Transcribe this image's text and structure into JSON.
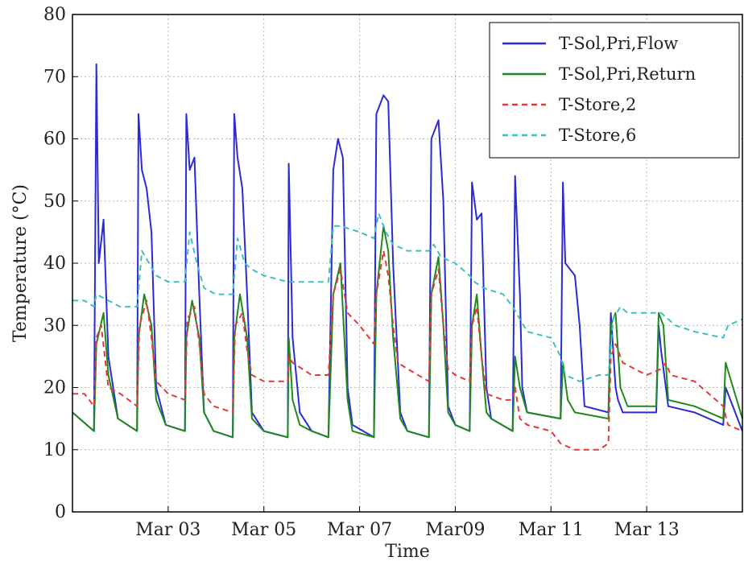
{
  "chart_data": {
    "type": "line",
    "title": "",
    "xlabel": "Time",
    "ylabel": "Temperature (°C)",
    "ylim": [
      0,
      80
    ],
    "yticks": [
      0,
      10,
      20,
      30,
      40,
      50,
      60,
      70,
      80
    ],
    "xlim_days": [
      0,
      14
    ],
    "xticks": [
      {
        "label": "Mar 03",
        "day": 2
      },
      {
        "label": "Mar 05",
        "day": 4
      },
      {
        "label": "Mar 07",
        "day": 6
      },
      {
        "label": "Mar09",
        "day": 8
      },
      {
        "label": "Mar 11",
        "day": 10
      },
      {
        "label": "Mar 13",
        "day": 12
      }
    ],
    "grid": true,
    "legend_position": "top-right",
    "series": [
      {
        "name": "T-Sol,Pri,Flow",
        "color": "#2b2bd6",
        "dash": "solid",
        "points": [
          [
            0,
            16
          ],
          [
            0.45,
            13
          ],
          [
            0.5,
            72
          ],
          [
            0.55,
            40
          ],
          [
            0.65,
            47
          ],
          [
            0.75,
            25
          ],
          [
            0.95,
            15
          ],
          [
            1.35,
            13
          ],
          [
            1.38,
            64
          ],
          [
            1.45,
            55
          ],
          [
            1.55,
            52
          ],
          [
            1.65,
            45
          ],
          [
            1.75,
            20
          ],
          [
            1.95,
            14
          ],
          [
            2.35,
            13
          ],
          [
            2.38,
            64
          ],
          [
            2.45,
            55
          ],
          [
            2.55,
            57
          ],
          [
            2.65,
            35
          ],
          [
            2.75,
            16
          ],
          [
            2.95,
            13
          ],
          [
            3.35,
            12
          ],
          [
            3.38,
            64
          ],
          [
            3.45,
            57
          ],
          [
            3.55,
            52
          ],
          [
            3.65,
            35
          ],
          [
            3.75,
            16
          ],
          [
            4,
            13
          ],
          [
            4.5,
            12
          ],
          [
            4.52,
            56
          ],
          [
            4.6,
            28
          ],
          [
            4.75,
            16
          ],
          [
            5,
            13
          ],
          [
            5.35,
            12
          ],
          [
            5.45,
            55
          ],
          [
            5.55,
            60
          ],
          [
            5.65,
            57
          ],
          [
            5.75,
            20
          ],
          [
            5.85,
            14
          ],
          [
            6.3,
            12
          ],
          [
            6.35,
            64
          ],
          [
            6.5,
            67
          ],
          [
            6.6,
            66
          ],
          [
            6.7,
            40
          ],
          [
            6.85,
            16
          ],
          [
            7,
            13
          ],
          [
            7.45,
            12
          ],
          [
            7.5,
            60
          ],
          [
            7.65,
            63
          ],
          [
            7.75,
            50
          ],
          [
            7.85,
            17
          ],
          [
            8,
            14
          ],
          [
            8.3,
            13
          ],
          [
            8.35,
            53
          ],
          [
            8.45,
            47
          ],
          [
            8.55,
            48
          ],
          [
            8.65,
            20
          ],
          [
            8.75,
            15
          ],
          [
            9.2,
            13
          ],
          [
            9.25,
            54
          ],
          [
            9.35,
            35
          ],
          [
            9.4,
            20
          ],
          [
            9.5,
            16
          ],
          [
            10.2,
            15
          ],
          [
            10.25,
            53
          ],
          [
            10.3,
            40
          ],
          [
            10.5,
            38
          ],
          [
            10.6,
            30
          ],
          [
            10.7,
            17
          ],
          [
            11.2,
            16
          ],
          [
            11.25,
            32
          ],
          [
            11.35,
            20
          ],
          [
            11.4,
            18
          ],
          [
            11.5,
            16
          ],
          [
            12.2,
            16
          ],
          [
            12.25,
            30
          ],
          [
            12.3,
            26
          ],
          [
            12.45,
            17
          ],
          [
            13,
            16
          ],
          [
            13.6,
            14
          ],
          [
            13.65,
            20
          ],
          [
            14,
            13
          ]
        ]
      },
      {
        "name": "T-Sol,Pri,Return",
        "color": "#1e8a1e",
        "dash": "solid",
        "points": [
          [
            0,
            16
          ],
          [
            0.45,
            13
          ],
          [
            0.5,
            27
          ],
          [
            0.65,
            32
          ],
          [
            0.75,
            22
          ],
          [
            0.95,
            15
          ],
          [
            1.35,
            13
          ],
          [
            1.38,
            28
          ],
          [
            1.5,
            35
          ],
          [
            1.65,
            30
          ],
          [
            1.75,
            18
          ],
          [
            1.95,
            14
          ],
          [
            2.35,
            13
          ],
          [
            2.38,
            28
          ],
          [
            2.5,
            34
          ],
          [
            2.65,
            28
          ],
          [
            2.75,
            16
          ],
          [
            2.95,
            13
          ],
          [
            3.35,
            12
          ],
          [
            3.38,
            28
          ],
          [
            3.5,
            35
          ],
          [
            3.65,
            28
          ],
          [
            3.75,
            15
          ],
          [
            4,
            13
          ],
          [
            4.5,
            12
          ],
          [
            4.52,
            28
          ],
          [
            4.6,
            18
          ],
          [
            4.75,
            14
          ],
          [
            5,
            13
          ],
          [
            5.35,
            12
          ],
          [
            5.45,
            35
          ],
          [
            5.6,
            40
          ],
          [
            5.75,
            18
          ],
          [
            5.85,
            13
          ],
          [
            6.3,
            12
          ],
          [
            6.35,
            35
          ],
          [
            6.5,
            46
          ],
          [
            6.6,
            42
          ],
          [
            6.7,
            28
          ],
          [
            6.85,
            15
          ],
          [
            7,
            13
          ],
          [
            7.45,
            12
          ],
          [
            7.5,
            35
          ],
          [
            7.65,
            41
          ],
          [
            7.75,
            30
          ],
          [
            7.85,
            16
          ],
          [
            8,
            14
          ],
          [
            8.3,
            13
          ],
          [
            8.35,
            30
          ],
          [
            8.45,
            35
          ],
          [
            8.55,
            25
          ],
          [
            8.65,
            16
          ],
          [
            8.75,
            15
          ],
          [
            9.2,
            13
          ],
          [
            9.25,
            25
          ],
          [
            9.35,
            20
          ],
          [
            9.5,
            16
          ],
          [
            10.2,
            15
          ],
          [
            10.25,
            24
          ],
          [
            10.35,
            18
          ],
          [
            10.5,
            16
          ],
          [
            11.2,
            15
          ],
          [
            11.25,
            30
          ],
          [
            11.35,
            32
          ],
          [
            11.45,
            20
          ],
          [
            11.6,
            17
          ],
          [
            12.2,
            17
          ],
          [
            12.25,
            32
          ],
          [
            12.35,
            30
          ],
          [
            12.45,
            18
          ],
          [
            13,
            17
          ],
          [
            13.6,
            15
          ],
          [
            13.65,
            24
          ],
          [
            14,
            15
          ]
        ]
      },
      {
        "name": "T-Store,2",
        "color": "#e23a3a",
        "dash": "dashed",
        "points": [
          [
            0,
            19
          ],
          [
            0.25,
            19
          ],
          [
            0.45,
            17
          ],
          [
            0.5,
            28
          ],
          [
            0.6,
            30
          ],
          [
            0.75,
            20
          ],
          [
            1,
            19
          ],
          [
            1.35,
            17
          ],
          [
            1.4,
            30
          ],
          [
            1.55,
            34
          ],
          [
            1.65,
            28
          ],
          [
            1.75,
            21
          ],
          [
            2,
            19
          ],
          [
            2.35,
            18
          ],
          [
            2.4,
            31
          ],
          [
            2.55,
            33
          ],
          [
            2.65,
            27
          ],
          [
            2.75,
            19
          ],
          [
            2.95,
            17
          ],
          [
            3.35,
            16
          ],
          [
            3.4,
            30
          ],
          [
            3.55,
            32
          ],
          [
            3.65,
            26
          ],
          [
            3.75,
            22
          ],
          [
            4,
            21
          ],
          [
            4.5,
            21
          ],
          [
            4.52,
            25
          ],
          [
            4.6,
            24
          ],
          [
            5,
            22
          ],
          [
            5.35,
            22
          ],
          [
            5.45,
            35
          ],
          [
            5.6,
            39
          ],
          [
            5.75,
            32
          ],
          [
            6,
            30
          ],
          [
            6.3,
            27
          ],
          [
            6.35,
            35
          ],
          [
            6.5,
            42
          ],
          [
            6.6,
            38
          ],
          [
            6.7,
            30
          ],
          [
            6.8,
            24
          ],
          [
            7,
            23
          ],
          [
            7.45,
            21
          ],
          [
            7.5,
            35
          ],
          [
            7.65,
            39
          ],
          [
            7.75,
            30
          ],
          [
            7.85,
            23
          ],
          [
            8,
            22
          ],
          [
            8.3,
            21
          ],
          [
            8.35,
            30
          ],
          [
            8.45,
            33
          ],
          [
            8.55,
            25
          ],
          [
            8.65,
            19
          ],
          [
            9,
            18
          ],
          [
            9.2,
            18
          ],
          [
            9.25,
            20
          ],
          [
            9.35,
            15
          ],
          [
            9.5,
            14
          ],
          [
            10,
            13
          ],
          [
            10.2,
            11
          ],
          [
            10.5,
            10
          ],
          [
            11,
            10
          ],
          [
            11.2,
            11
          ],
          [
            11.25,
            25
          ],
          [
            11.35,
            27
          ],
          [
            11.5,
            24
          ],
          [
            12,
            22
          ],
          [
            12.3,
            23
          ],
          [
            12.4,
            24
          ],
          [
            12.5,
            22
          ],
          [
            13,
            21
          ],
          [
            13.6,
            17
          ],
          [
            13.7,
            14
          ],
          [
            14,
            13
          ]
        ]
      },
      {
        "name": "T-Store,6",
        "color": "#3fc0c0",
        "dash": "dashed",
        "points": [
          [
            0,
            34
          ],
          [
            0.25,
            34
          ],
          [
            0.45,
            33
          ],
          [
            0.5,
            35
          ],
          [
            0.75,
            34
          ],
          [
            1,
            33
          ],
          [
            1.35,
            33
          ],
          [
            1.45,
            42
          ],
          [
            1.6,
            40
          ],
          [
            1.75,
            38
          ],
          [
            2,
            37
          ],
          [
            2.35,
            37
          ],
          [
            2.45,
            45
          ],
          [
            2.6,
            40
          ],
          [
            2.75,
            36
          ],
          [
            3,
            35
          ],
          [
            3.35,
            35
          ],
          [
            3.45,
            44
          ],
          [
            3.6,
            40
          ],
          [
            3.75,
            39
          ],
          [
            4,
            38
          ],
          [
            4.5,
            37
          ],
          [
            5,
            37
          ],
          [
            5.35,
            37
          ],
          [
            5.45,
            46
          ],
          [
            5.6,
            46
          ],
          [
            6,
            45
          ],
          [
            6.3,
            44
          ],
          [
            6.4,
            48
          ],
          [
            6.55,
            45
          ],
          [
            6.7,
            43
          ],
          [
            7,
            42
          ],
          [
            7.45,
            42
          ],
          [
            7.55,
            43
          ],
          [
            7.7,
            41
          ],
          [
            8,
            40
          ],
          [
            8.3,
            38
          ],
          [
            8.4,
            37
          ],
          [
            8.6,
            36
          ],
          [
            9,
            35
          ],
          [
            9.2,
            33
          ],
          [
            9.35,
            31
          ],
          [
            9.5,
            29
          ],
          [
            10,
            28
          ],
          [
            10.2,
            25
          ],
          [
            10.3,
            22
          ],
          [
            10.6,
            21
          ],
          [
            11,
            22
          ],
          [
            11.2,
            22
          ],
          [
            11.3,
            31
          ],
          [
            11.45,
            33
          ],
          [
            11.6,
            32
          ],
          [
            12,
            32
          ],
          [
            12.3,
            32
          ],
          [
            12.45,
            31
          ],
          [
            12.6,
            30
          ],
          [
            13,
            29
          ],
          [
            13.6,
            28
          ],
          [
            13.7,
            30
          ],
          [
            14,
            31
          ]
        ]
      }
    ]
  }
}
